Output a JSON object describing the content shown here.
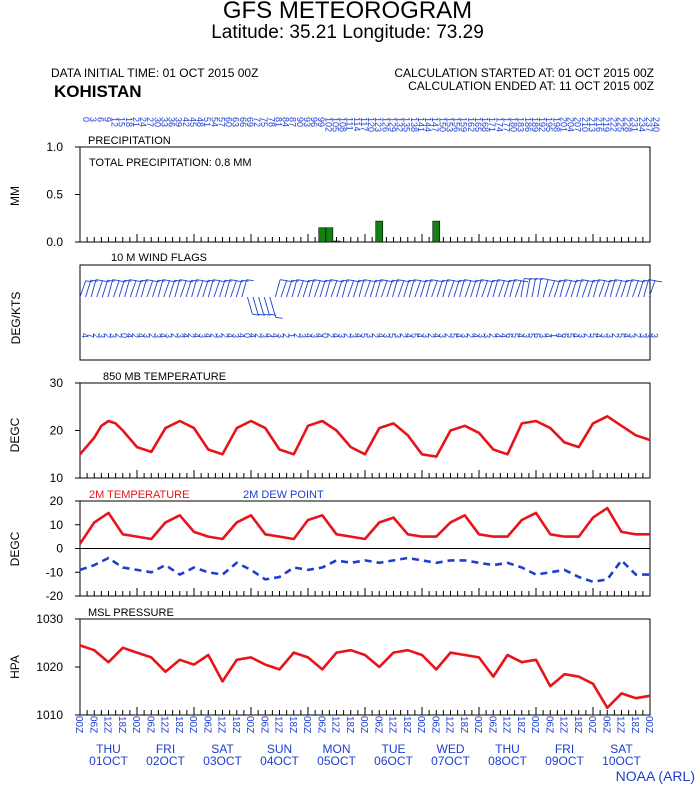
{
  "header": {
    "title": "GFS METEOROGRAM",
    "subtitle": "Latitude: 35.21 Longitude:  73.29",
    "data_initial_time": "DATA INITIAL TIME: 01 OCT 2015 00Z",
    "station": "KOHISTAN",
    "calc_started": "CALCULATION STARTED AT: 01 OCT 2015 00Z",
    "calc_ended": "CALCULATION ENDED AT: 11 OCT 2015 00Z"
  },
  "footer": {
    "credit": "NOAA (ARL)"
  },
  "colors": {
    "red": "#e8141a",
    "blue": "#1d3fd0",
    "green": "#128012",
    "axis": "#000000"
  },
  "chart_data": [
    {
      "type": "bar",
      "title": "PRECIPITATION",
      "annotation": "TOTAL PRECIPITATION:   0.8 MM",
      "ylabel": "MM",
      "ylim": [
        0,
        1.0
      ],
      "yticks": [
        "1.0",
        "0.5",
        "0.0"
      ],
      "x_hours": [
        102,
        105,
        108,
        126,
        150
      ],
      "values": [
        0.15,
        0.15,
        0.01,
        0.22,
        0.22
      ]
    },
    {
      "type": "wind-barbs",
      "title": "10 M  WIND FLAGS",
      "ylabel": "DEG/KTS",
      "speeds": [
        "4",
        "7",
        "2",
        "3",
        "2",
        "3",
        "2",
        "0",
        "4",
        "2",
        "4",
        "3",
        "2",
        "3",
        "4",
        "3",
        "2",
        "3",
        "4",
        "2",
        "4",
        "3",
        "4",
        "2",
        "3",
        "2",
        "4",
        "3",
        "4",
        "0",
        "4",
        "2",
        "3",
        "4",
        "4",
        "3",
        "2",
        "1",
        "2",
        "3",
        "4",
        "3",
        "4",
        "0",
        "2",
        "4",
        "3",
        "2",
        "3",
        "4",
        "5",
        "3",
        "2",
        "4",
        "3",
        "5",
        "3",
        "2",
        "4",
        "5",
        "4",
        "3",
        "2",
        "4",
        "3",
        "2",
        "5",
        "4",
        "3",
        "2",
        "4",
        "3",
        "3",
        "2",
        "4",
        "4",
        "6",
        "5",
        "4",
        "3",
        "5",
        "6",
        "3",
        "4",
        "1",
        "4",
        "6",
        "5",
        "4",
        "3",
        "2",
        "5",
        "4",
        "3",
        "3",
        "2",
        "5",
        "4",
        "3",
        "2",
        "3",
        "3",
        "3"
      ]
    },
    {
      "type": "line",
      "title": "850 MB  TEMPERATURE",
      "ylabel": "DEGC",
      "ylim": [
        10,
        30
      ],
      "yticks": [
        "30",
        "20",
        "10"
      ],
      "x_hours": [
        0,
        6,
        9,
        12,
        15,
        18,
        24,
        30,
        36,
        42,
        48,
        54,
        60,
        66,
        72,
        78,
        84,
        90,
        96,
        102,
        108,
        114,
        120,
        126,
        132,
        138,
        144,
        150,
        156,
        162,
        168,
        174,
        180,
        186,
        192,
        198,
        204,
        210,
        216,
        222,
        228,
        234,
        240
      ],
      "series": [
        {
          "values": [
            15,
            18.5,
            21,
            22,
            21.5,
            20,
            16.5,
            15.5,
            20.5,
            22,
            20.5,
            16,
            15,
            20.5,
            22,
            20.5,
            16,
            15,
            21,
            22,
            20,
            16.5,
            15,
            20.5,
            21.5,
            19,
            15,
            14.5,
            20,
            21,
            19.5,
            16,
            15,
            21.5,
            22,
            20.5,
            17.5,
            16.5,
            21.5,
            23,
            21,
            19,
            18
          ]
        }
      ]
    },
    {
      "type": "line",
      "ylabel": "DEGC",
      "ylim": [
        -20,
        20
      ],
      "yticks": [
        "20",
        "10",
        "0",
        "-10",
        "-20"
      ],
      "x_hours": [
        0,
        6,
        12,
        18,
        24,
        30,
        36,
        42,
        48,
        54,
        60,
        66,
        72,
        78,
        84,
        90,
        96,
        102,
        108,
        114,
        120,
        126,
        132,
        138,
        144,
        150,
        156,
        162,
        168,
        174,
        180,
        186,
        192,
        198,
        204,
        210,
        216,
        222,
        228,
        234,
        240
      ],
      "series": [
        {
          "name": "2M TEMPERATURE",
          "values": [
            2,
            11,
            15,
            6,
            5,
            4,
            11,
            14,
            7,
            5,
            4,
            11,
            14,
            6,
            5,
            4,
            12,
            14,
            6,
            5,
            4,
            11,
            13,
            6,
            5,
            5,
            11,
            14,
            6,
            5,
            5,
            12,
            15,
            6,
            5,
            5,
            13,
            17,
            7,
            6,
            6
          ]
        },
        {
          "name": "2M  DEW POINT",
          "values": [
            -9,
            -7,
            -4,
            -8,
            -9,
            -10,
            -7,
            -11,
            -8,
            -10,
            -11,
            -6,
            -9,
            -13,
            -12,
            -8,
            -9,
            -8,
            -5,
            -6,
            -5,
            -6,
            -5,
            -4,
            -5,
            -6,
            -5,
            -5,
            -6,
            -7,
            -6,
            -8,
            -11,
            -10,
            -9,
            -12,
            -14,
            -13,
            -5,
            -11,
            -11
          ]
        }
      ]
    },
    {
      "type": "line",
      "title": "MSL PRESSURE",
      "ylabel": "HPA",
      "ylim": [
        1010,
        1030
      ],
      "yticks": [
        "1030",
        "1020",
        "1010"
      ],
      "x_hours": [
        0,
        6,
        12,
        18,
        24,
        30,
        36,
        42,
        48,
        54,
        60,
        66,
        72,
        78,
        84,
        90,
        96,
        102,
        108,
        114,
        120,
        126,
        132,
        138,
        144,
        150,
        156,
        162,
        168,
        174,
        180,
        186,
        192,
        198,
        204,
        210,
        216,
        222,
        228,
        234,
        240
      ],
      "series": [
        {
          "values": [
            1024.5,
            1023.5,
            1021,
            1024,
            1023,
            1022,
            1019,
            1021.5,
            1020.5,
            1022.5,
            1017,
            1021.5,
            1022,
            1020.5,
            1019.5,
            1023,
            1022,
            1019.5,
            1023,
            1023.5,
            1022.5,
            1020,
            1023,
            1023.5,
            1022.5,
            1019.5,
            1023,
            1022.5,
            1022,
            1018,
            1022.5,
            1021,
            1021.5,
            1016,
            1018.5,
            1018,
            1016.5,
            1011.5,
            1014.5,
            1013.5,
            1014
          ]
        }
      ]
    }
  ],
  "xaxis": {
    "top_ticks": [
      "0",
      "3",
      "6",
      "9",
      "12",
      "15",
      "18",
      "21",
      "24",
      "27",
      "30",
      "33",
      "36",
      "39",
      "42",
      "45",
      "48",
      "51",
      "54",
      "57",
      "60",
      "63",
      "66",
      "69",
      "72",
      "75",
      "78",
      "81",
      "84",
      "87",
      "90",
      "93",
      "96",
      "99",
      "102",
      "105",
      "108",
      "111",
      "114",
      "117",
      "120",
      "123",
      "126",
      "129",
      "132",
      "135",
      "138",
      "141",
      "144",
      "147",
      "150",
      "153",
      "156",
      "159",
      "162",
      "165",
      "168",
      "171",
      "174",
      "177",
      "180",
      "183",
      "186",
      "189",
      "192",
      "195",
      "198",
      "201",
      "204",
      "207",
      "210",
      "213",
      "216",
      "219",
      "222",
      "225",
      "228",
      "231",
      "234",
      "237",
      "240"
    ],
    "bottom_ticks": [
      "00Z",
      "06Z",
      "12Z",
      "18Z",
      "00Z",
      "06Z",
      "12Z",
      "18Z",
      "00Z",
      "06Z",
      "12Z",
      "18Z",
      "00Z",
      "06Z",
      "12Z",
      "18Z",
      "00Z",
      "06Z",
      "12Z",
      "18Z",
      "00Z",
      "06Z",
      "12Z",
      "18Z",
      "00Z",
      "06Z",
      "12Z",
      "18Z",
      "00Z",
      "06Z",
      "12Z",
      "18Z",
      "00Z",
      "06Z",
      "12Z",
      "18Z",
      "00Z",
      "06Z",
      "12Z",
      "18Z",
      "00Z"
    ],
    "days": [
      {
        "dow": "THU",
        "date": "01OCT"
      },
      {
        "dow": "FRI",
        "date": "02OCT"
      },
      {
        "dow": "SAT",
        "date": "03OCT"
      },
      {
        "dow": "SUN",
        "date": "04OCT"
      },
      {
        "dow": "MON",
        "date": "05OCT"
      },
      {
        "dow": "TUE",
        "date": "06OCT"
      },
      {
        "dow": "WED",
        "date": "07OCT"
      },
      {
        "dow": "THU",
        "date": "08OCT"
      },
      {
        "dow": "FRI",
        "date": "09OCT"
      },
      {
        "dow": "SAT",
        "date": "10OCT"
      }
    ]
  }
}
